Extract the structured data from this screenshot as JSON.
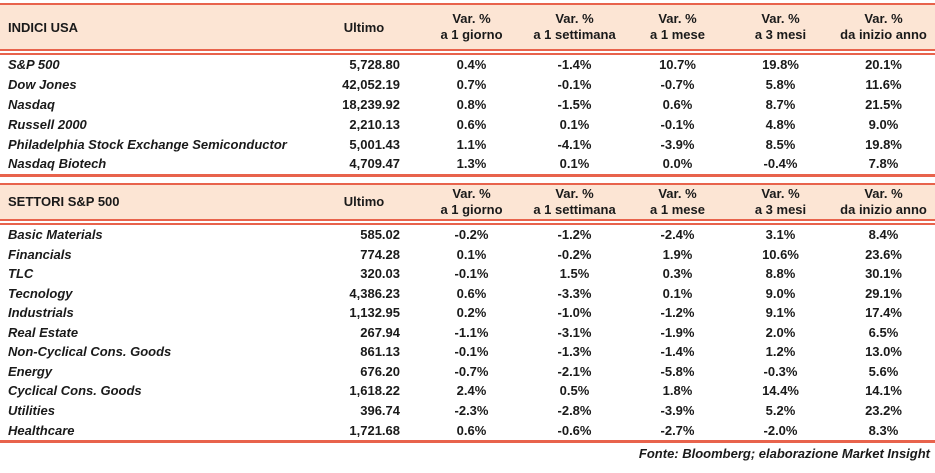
{
  "columns": {
    "ultimo": "Ultimo",
    "var_top": "Var. %",
    "var_subs": [
      "a 1 giorno",
      "a 1 settimana",
      "a 1 mese",
      "a 3 mesi",
      "da inizio anno"
    ]
  },
  "tables": [
    {
      "title": "INDICI USA",
      "rows": [
        {
          "label": "S&P 500",
          "ultimo": "5,728.80",
          "vars": [
            "0.4%",
            "-1.4%",
            "10.7%",
            "19.8%",
            "20.1%"
          ]
        },
        {
          "label": "Dow Jones",
          "ultimo": "42,052.19",
          "vars": [
            "0.7%",
            "-0.1%",
            "-0.7%",
            "5.8%",
            "11.6%"
          ]
        },
        {
          "label": "Nasdaq",
          "ultimo": "18,239.92",
          "vars": [
            "0.8%",
            "-1.5%",
            "0.6%",
            "8.7%",
            "21.5%"
          ]
        },
        {
          "label": "Russell 2000",
          "ultimo": "2,210.13",
          "vars": [
            "0.6%",
            "0.1%",
            "-0.1%",
            "4.8%",
            "9.0%"
          ]
        },
        {
          "label": "Philadelphia Stock Exchange Semiconductor",
          "ultimo": "5,001.43",
          "vars": [
            "1.1%",
            "-4.1%",
            "-3.9%",
            "8.5%",
            "19.8%"
          ]
        },
        {
          "label": "Nasdaq Biotech",
          "ultimo": "4,709.47",
          "vars": [
            "1.3%",
            "0.1%",
            "0.0%",
            "-0.4%",
            "7.8%"
          ]
        }
      ]
    },
    {
      "title": "SETTORI S&P 500",
      "rows": [
        {
          "label": "Basic Materials",
          "ultimo": "585.02",
          "vars": [
            "-0.2%",
            "-1.2%",
            "-2.4%",
            "3.1%",
            "8.4%"
          ]
        },
        {
          "label": "Financials",
          "ultimo": "774.28",
          "vars": [
            "0.1%",
            "-0.2%",
            "1.9%",
            "10.6%",
            "23.6%"
          ]
        },
        {
          "label": "TLC",
          "ultimo": "320.03",
          "vars": [
            "-0.1%",
            "1.5%",
            "0.3%",
            "8.8%",
            "30.1%"
          ]
        },
        {
          "label": "Tecnology",
          "ultimo": "4,386.23",
          "vars": [
            "0.6%",
            "-3.3%",
            "0.1%",
            "9.0%",
            "29.1%"
          ]
        },
        {
          "label": "Industrials",
          "ultimo": "1,132.95",
          "vars": [
            "0.2%",
            "-1.0%",
            "-1.2%",
            "9.1%",
            "17.4%"
          ]
        },
        {
          "label": "Real Estate",
          "ultimo": "267.94",
          "vars": [
            "-1.1%",
            "-3.1%",
            "-1.9%",
            "2.0%",
            "6.5%"
          ]
        },
        {
          "label": "Non-Cyclical Cons. Goods",
          "ultimo": "861.13",
          "vars": [
            "-0.1%",
            "-1.3%",
            "-1.4%",
            "1.2%",
            "13.0%"
          ]
        },
        {
          "label": "Energy",
          "ultimo": "676.20",
          "vars": [
            "-0.7%",
            "-2.1%",
            "-5.8%",
            "-0.3%",
            "5.6%"
          ]
        },
        {
          "label": "Cyclical Cons. Goods",
          "ultimo": "1,618.22",
          "vars": [
            "2.4%",
            "0.5%",
            "1.8%",
            "14.4%",
            "14.1%"
          ]
        },
        {
          "label": "Utilities",
          "ultimo": "396.74",
          "vars": [
            "-2.3%",
            "-2.8%",
            "-3.9%",
            "5.2%",
            "23.2%"
          ]
        },
        {
          "label": "Healthcare",
          "ultimo": "1,721.68",
          "vars": [
            "0.6%",
            "-0.6%",
            "-2.7%",
            "-2.0%",
            "8.3%"
          ]
        }
      ]
    }
  ],
  "footer": "Fonte: Bloomberg; elaborazione Market Insight",
  "colors": {
    "accent_line": "#e8634c",
    "header_bg": "#fce5d4",
    "text": "#1a1a1a"
  }
}
